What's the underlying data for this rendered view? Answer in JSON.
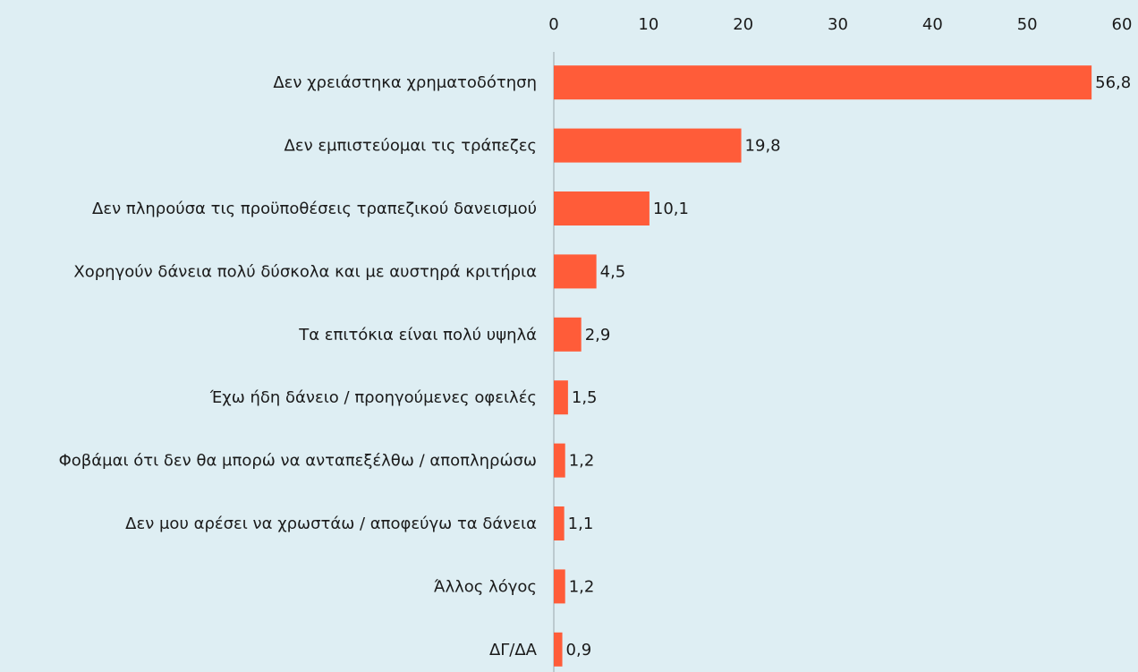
{
  "chart_data": {
    "type": "barh",
    "categories": [
      "Δεν χρειάστηκα χρηματοδότηση",
      "Δεν εμπιστεύομαι τις τράπεζες",
      "Δεν πληρούσα τις προϋποθέσεις τραπεζικού δανεισμού",
      "Χορηγούν δάνεια πολύ δύσκολα και με αυστηρά κριτήρια",
      "Τα επιτόκια είναι πολύ υψηλά",
      "Έχω ήδη δάνειο / προηγούμενες οφειλές",
      "Φοβάμαι ότι δεν θα μπορώ να ανταπεξέλθω / αποπληρώσω",
      "Δεν μου αρέσει να χρωστάω / αποφεύγω τα δάνεια",
      "Άλλος λόγος",
      "ΔΓ/ΔΑ"
    ],
    "values": [
      56.8,
      19.8,
      10.1,
      4.5,
      2.9,
      1.5,
      1.2,
      1.1,
      1.2,
      0.9
    ],
    "value_labels": [
      "56,8",
      "19,8",
      "10,1",
      "4,5",
      "2,9",
      "1,5",
      "1,2",
      "1,1",
      "1,2",
      "0,9"
    ],
    "color": "#ff5c39",
    "xlim": [
      0,
      60
    ],
    "xticks": [
      0,
      10,
      20,
      30,
      40,
      50,
      60
    ]
  }
}
